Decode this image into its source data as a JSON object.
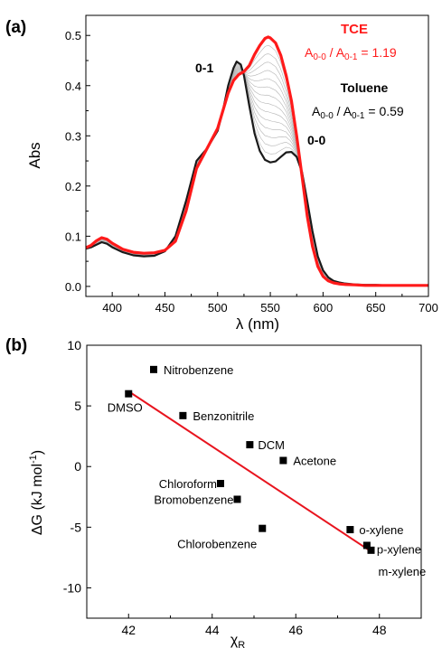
{
  "chart_data": [
    {
      "panel": "(a)",
      "type": "line",
      "xlabel": "λ (nm)",
      "ylabel": "Abs",
      "xlim": [
        375,
        700
      ],
      "ylim": [
        -0.02,
        0.54
      ],
      "x_ticks": [
        400,
        450,
        500,
        550,
        600,
        650,
        700
      ],
      "y_ticks": [
        0.0,
        0.1,
        0.2,
        0.3,
        0.4,
        0.5
      ],
      "colors": {
        "tce": "#ff1a1a",
        "toluene": "#1a1a1a",
        "intermediate": "#b4b4b4"
      },
      "series": [
        {
          "name": "Toluene",
          "x": [
            375,
            380,
            385,
            390,
            395,
            400,
            410,
            420,
            430,
            440,
            450,
            460,
            470,
            480,
            490,
            500,
            505,
            510,
            515,
            518,
            522,
            525,
            530,
            535,
            540,
            545,
            550,
            555,
            560,
            565,
            570,
            575,
            580,
            585,
            590,
            595,
            600,
            605,
            610,
            615,
            620,
            630,
            640,
            650,
            660,
            680,
            700
          ],
          "values": [
            0.075,
            0.078,
            0.083,
            0.088,
            0.085,
            0.078,
            0.068,
            0.062,
            0.06,
            0.061,
            0.07,
            0.1,
            0.17,
            0.25,
            0.275,
            0.31,
            0.35,
            0.4,
            0.435,
            0.448,
            0.442,
            0.42,
            0.36,
            0.305,
            0.27,
            0.252,
            0.247,
            0.249,
            0.258,
            0.267,
            0.268,
            0.258,
            0.228,
            0.17,
            0.11,
            0.06,
            0.032,
            0.018,
            0.011,
            0.008,
            0.006,
            0.004,
            0.003,
            0.003,
            0.002,
            0.002,
            0.002
          ]
        },
        {
          "name": "TCE",
          "x": [
            375,
            380,
            385,
            390,
            395,
            400,
            410,
            420,
            430,
            440,
            450,
            460,
            470,
            480,
            490,
            500,
            505,
            510,
            515,
            520,
            525,
            530,
            535,
            540,
            545,
            548,
            550,
            555,
            560,
            565,
            570,
            575,
            580,
            585,
            590,
            595,
            600,
            605,
            610,
            615,
            620,
            630,
            640,
            650,
            660,
            680,
            700
          ],
          "values": [
            0.077,
            0.082,
            0.091,
            0.097,
            0.094,
            0.086,
            0.074,
            0.068,
            0.066,
            0.067,
            0.072,
            0.09,
            0.15,
            0.235,
            0.275,
            0.315,
            0.35,
            0.385,
            0.41,
            0.422,
            0.428,
            0.44,
            0.462,
            0.48,
            0.494,
            0.497,
            0.495,
            0.485,
            0.46,
            0.42,
            0.37,
            0.3,
            0.22,
            0.14,
            0.08,
            0.04,
            0.02,
            0.011,
            0.007,
            0.005,
            0.004,
            0.003,
            0.002,
            0.002,
            0.002,
            0.002,
            0.002
          ]
        }
      ],
      "intermediate_curves": 14,
      "annotations": [
        {
          "text": "0-1",
          "style": "bold"
        },
        {
          "text": "0-0",
          "style": "bold"
        },
        {
          "text": "TCE",
          "style": "bold-red"
        },
        {
          "text": "Toluene",
          "style": "bold"
        }
      ],
      "ratios": {
        "tce": {
          "prefix": "A",
          "sub1": "0-0",
          "mid": " / A",
          "sub2": "0-1",
          "value": " = 1.19"
        },
        "toluene": {
          "prefix": "A",
          "sub1": "0-0",
          "mid": " / A",
          "sub2": "0-1",
          "value": " = 0.59"
        }
      },
      "grid": false
    },
    {
      "panel": "(b)",
      "type": "scatter",
      "xlabel_main": "χ",
      "xlabel_sub": "R",
      "ylabel_main": "ΔG (kJ mol",
      "ylabel_sup": "-1",
      "ylabel_end": ")",
      "xlim": [
        41,
        49
      ],
      "ylim": [
        -12.5,
        10
      ],
      "x_ticks": [
        42,
        44,
        46,
        48
      ],
      "y_ticks": [
        -10,
        -5,
        0,
        5,
        10
      ],
      "colors": {
        "points": "#000000",
        "fit": "#e8141e"
      },
      "points": [
        {
          "label": "Nitrobenzene",
          "x": 42.6,
          "y": 8.0
        },
        {
          "label": "DMSO",
          "x": 42.0,
          "y": 6.0
        },
        {
          "label": "Benzonitrile",
          "x": 43.3,
          "y": 4.2
        },
        {
          "label": "DCM",
          "x": 44.9,
          "y": 1.8
        },
        {
          "label": "Acetone",
          "x": 45.7,
          "y": 0.5
        },
        {
          "label": "Chloroform",
          "x": 44.2,
          "y": -1.4
        },
        {
          "label": "Bromobenzene",
          "x": 44.6,
          "y": -2.7
        },
        {
          "label": "Chlorobenzene",
          "x": 45.2,
          "y": -5.1
        },
        {
          "label": "o-xylene",
          "x": 47.3,
          "y": -5.2
        },
        {
          "label": "p-xylene",
          "x": 47.7,
          "y": -6.5
        },
        {
          "label": "m-xylene",
          "x": 47.8,
          "y": -6.9
        }
      ],
      "fit_line": {
        "x": [
          42.0,
          47.8
        ],
        "y": [
          6.2,
          -7.0
        ]
      },
      "grid": false
    }
  ]
}
